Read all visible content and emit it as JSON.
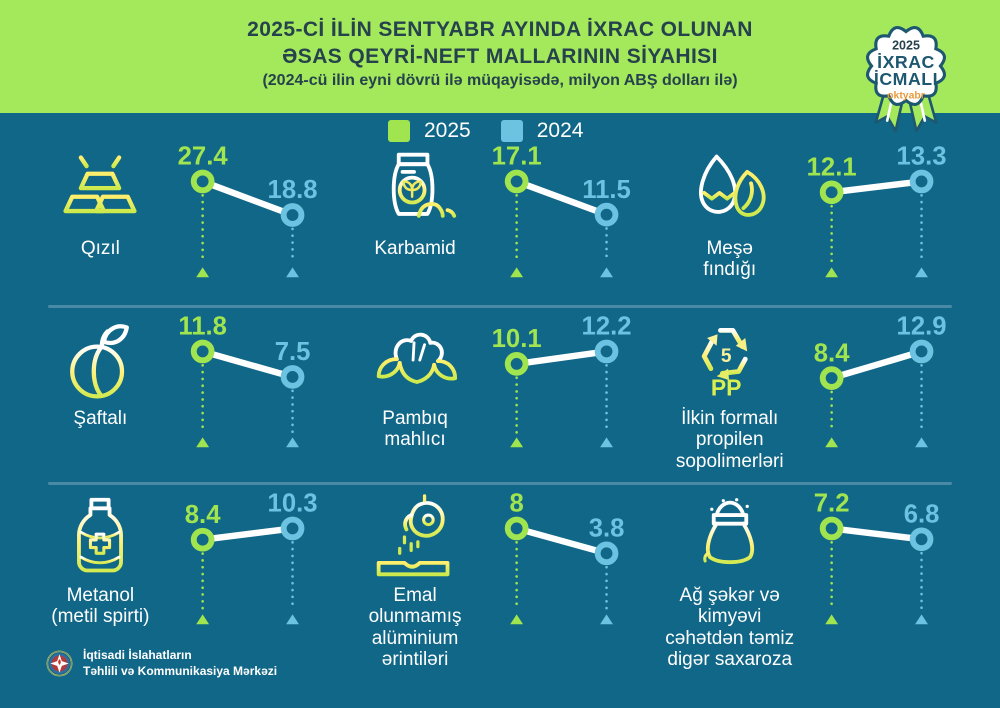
{
  "header": {
    "title_line1": "2025-Cİ İLİN SENTYABR AYINDA İXRAC OLUNAN",
    "title_line2": "ƏSAS QEYRİ-NEFT MALLARININ SİYAHISI",
    "title_line3": "(2024-cü ilin eyni dövrü ilə müqayisədə, milyon ABŞ dolları ilə)"
  },
  "badge": {
    "year": "2025",
    "line1": "İXRAC",
    "line2": "İCMALI",
    "month": "oktyabr"
  },
  "legend": {
    "s2025": "2025",
    "s2024": "2024"
  },
  "colors": {
    "background": "#116787",
    "header_green": "#a4e95c",
    "green_2025": "#a0e44f",
    "blue_2024": "#6cc3e1",
    "line": "#ffffff",
    "divider": "#4a8aa6",
    "icon_yellow": "#ffee66",
    "icon_yellow_green": "#cfe94f",
    "badge_teal": "#1d5870",
    "badge_orange": "#e89b3c",
    "title_text": "#26424c"
  },
  "footer": {
    "org": "İqtisadi İslahatların\nTəhlili və Kommunikasiya Mərkəzi"
  },
  "chart_data": {
    "type": "line",
    "subtype": "slope-dumbbell-per-item",
    "unit": "milyon ABŞ dolları",
    "series_labels": [
      "2025",
      "2024"
    ],
    "legend_position": "top-center",
    "items": [
      {
        "name": "Qızıl",
        "icon": "gold-bars-icon",
        "v2025": 27.4,
        "v2024": 18.8
      },
      {
        "name": "Karbamid",
        "icon": "fertilizer-bag-icon",
        "v2025": 17.1,
        "v2024": 11.5
      },
      {
        "name": "Meşə\nfındığı",
        "icon": "hazelnut-icon",
        "v2025": 12.1,
        "v2024": 13.3
      },
      {
        "name": "Şaftalı",
        "icon": "peach-icon",
        "v2025": 11.8,
        "v2024": 7.5
      },
      {
        "name": "Pambıq\nmahlıcı",
        "icon": "cotton-boll-icon",
        "v2025": 10.1,
        "v2024": 12.2
      },
      {
        "name": "İlkin formalı\npropilen\nsopolimerləri",
        "icon": "pp-recycling-icon",
        "v2025": 8.4,
        "v2024": 12.9
      },
      {
        "name": "Metanol\n(metil spirti)",
        "icon": "methanol-bottle-icon",
        "v2025": 8.4,
        "v2024": 10.3
      },
      {
        "name": "Emal\nolunmamış\nalüminium\nərintiləri",
        "icon": "aluminium-casting-icon",
        "v2025": 8,
        "v2024": 3.8
      },
      {
        "name": "Ağ şəkər və\nkimyəvi\ncəhətdən təmiz\ndigər saxaroza",
        "icon": "sugar-sack-icon",
        "v2025": 7.2,
        "v2024": 6.8
      }
    ]
  }
}
